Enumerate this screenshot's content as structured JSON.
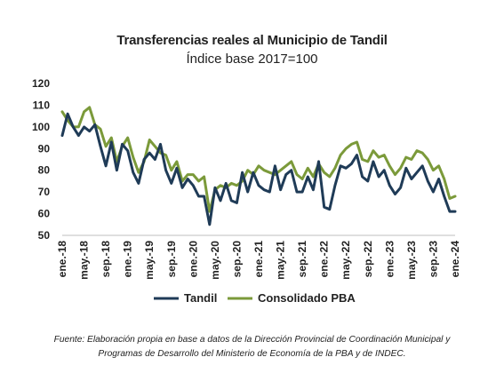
{
  "chart_data": {
    "type": "line",
    "title": "Transferencias reales al Municipio de Tandil",
    "subtitle": "Índice base 2017=100",
    "ylim": [
      50,
      120
    ],
    "yticks": [
      50,
      60,
      70,
      80,
      90,
      100,
      110,
      120
    ],
    "grid": false,
    "legend_position": "bottom",
    "x_tick_labels": [
      "ene.-18",
      "may.-18",
      "sep.-18",
      "ene.-19",
      "may.-19",
      "sep.-19",
      "ene.-20",
      "may.-20",
      "sep.-20",
      "ene.-21",
      "may.-21",
      "sep.-21",
      "ene.-22",
      "may.-22",
      "sep.-22",
      "ene.-23",
      "may.-23",
      "sep.-23",
      "ene.-24"
    ],
    "x_tick_every": 4,
    "series": [
      {
        "name": "Tandil",
        "color": "#1f3b57",
        "values": [
          96,
          106,
          100,
          96,
          100,
          98,
          101,
          91,
          82,
          93,
          80,
          92,
          89,
          79,
          74,
          85,
          88,
          85,
          92,
          80,
          74,
          81,
          72,
          76,
          73,
          68,
          68,
          55,
          72,
          66,
          74,
          66,
          65,
          79,
          70,
          79,
          73,
          71,
          70,
          82,
          71,
          78,
          80,
          70,
          70,
          77,
          71,
          84,
          63,
          62,
          73,
          82,
          81,
          83,
          87,
          77,
          75,
          84,
          77,
          80,
          73,
          69,
          72,
          81,
          76,
          79,
          82,
          75,
          70,
          76,
          68,
          61,
          61
        ]
      },
      {
        "name": "Consolidado PBA",
        "color": "#7b9a3a",
        "values": [
          107,
          103,
          100,
          100,
          107,
          109,
          101,
          99,
          91,
          95,
          84,
          91,
          95,
          86,
          79,
          84,
          94,
          91,
          88,
          87,
          80,
          84,
          75,
          78,
          78,
          75,
          77,
          61,
          71,
          73,
          72,
          74,
          73,
          75,
          80,
          78,
          82,
          80,
          79,
          78,
          80,
          82,
          84,
          78,
          76,
          81,
          77,
          83,
          79,
          77,
          81,
          87,
          90,
          92,
          93,
          85,
          84,
          89,
          86,
          87,
          82,
          78,
          81,
          86,
          85,
          89,
          88,
          85,
          80,
          82,
          76,
          67,
          68
        ]
      }
    ]
  },
  "source_note": {
    "line1": "Fuente: Elaboración propia en base a datos de la Dirección Provincial de Coordinación Municipal y",
    "line2": "Programas de Desarrollo del Ministerio de Economía de la PBA y de INDEC."
  }
}
